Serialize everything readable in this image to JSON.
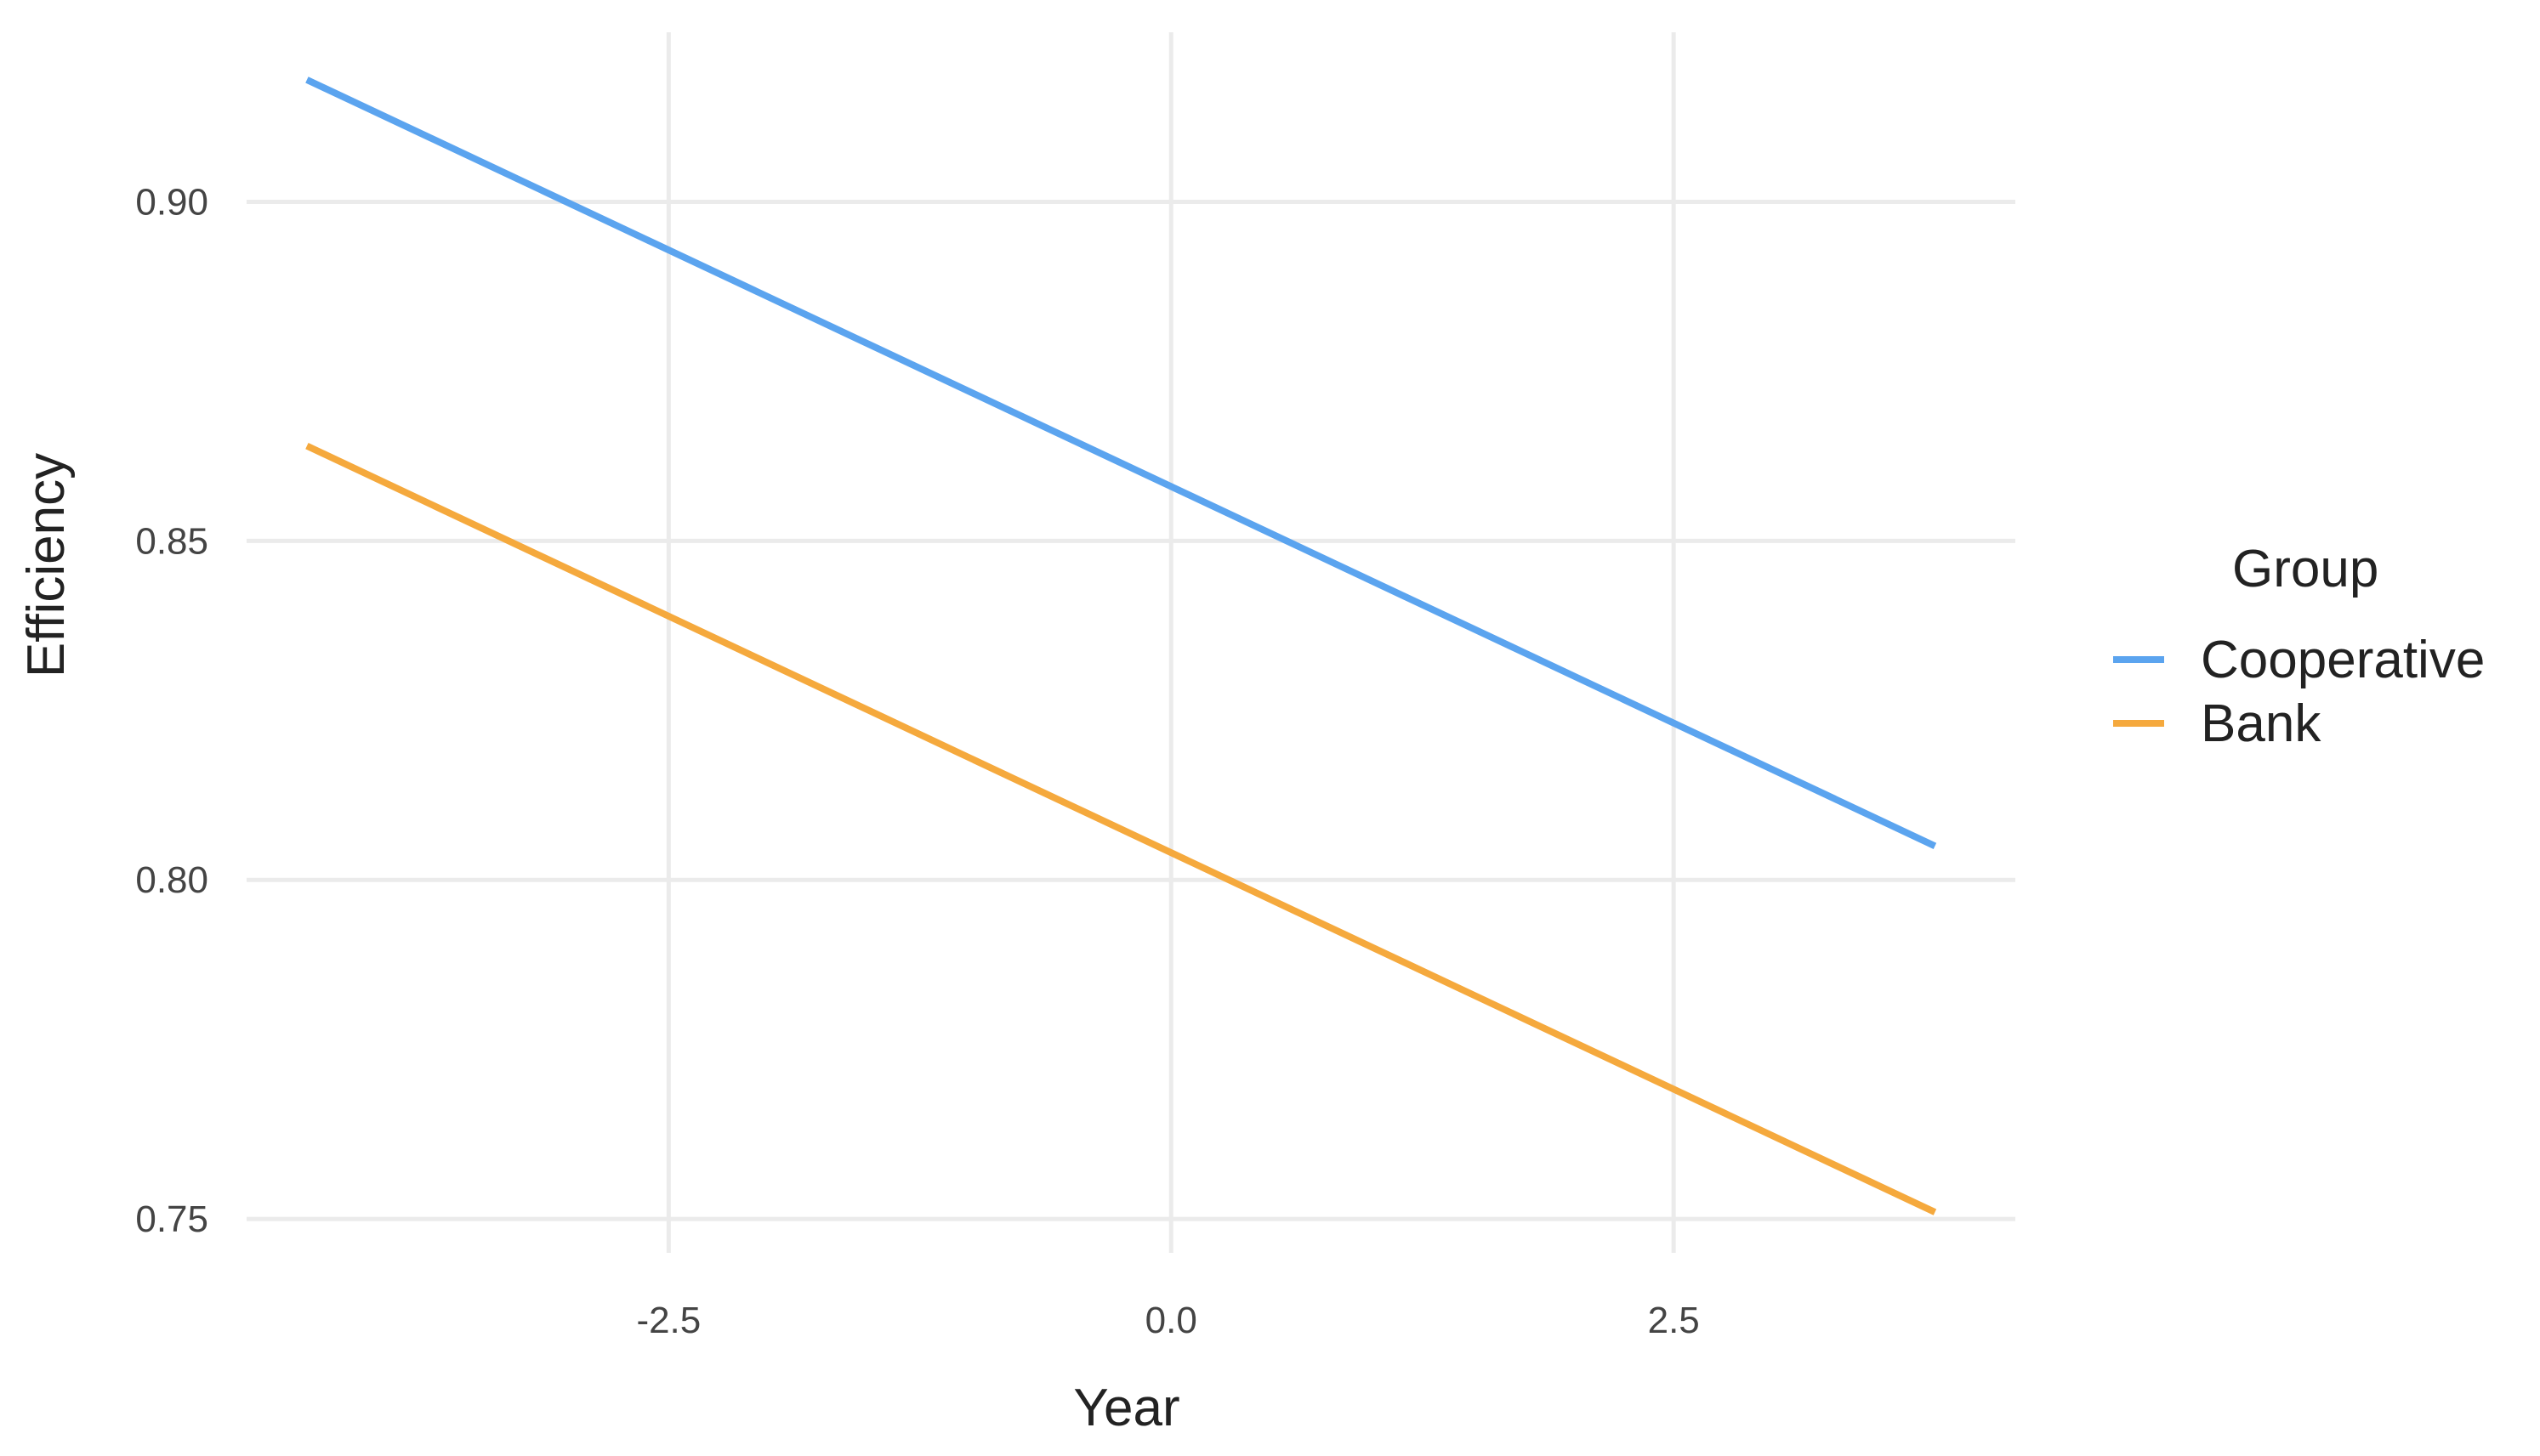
{
  "chart_data": {
    "type": "line",
    "xlabel": "Year",
    "ylabel": "Efficiency",
    "xlim": [
      -4.6,
      4.2
    ],
    "ylim": [
      0.745,
      0.925
    ],
    "x_ticks": [
      -2.5,
      0.0,
      2.5
    ],
    "x_tick_labels": [
      "-2.5",
      "0.0",
      "2.5"
    ],
    "y_ticks": [
      0.75,
      0.8,
      0.85,
      0.9
    ],
    "y_tick_labels": [
      "0.75",
      "0.80",
      "0.85",
      "0.90"
    ],
    "grid": true,
    "legend": {
      "title": "Group",
      "placement": "right"
    },
    "series": [
      {
        "name": "Cooperative",
        "color": "#5ba4ef",
        "x": [
          -4.3,
          3.8
        ],
        "y": [
          0.918,
          0.805
        ]
      },
      {
        "name": "Bank",
        "color": "#f5a93d",
        "x": [
          -4.3,
          3.8
        ],
        "y": [
          0.864,
          0.751
        ]
      }
    ]
  }
}
